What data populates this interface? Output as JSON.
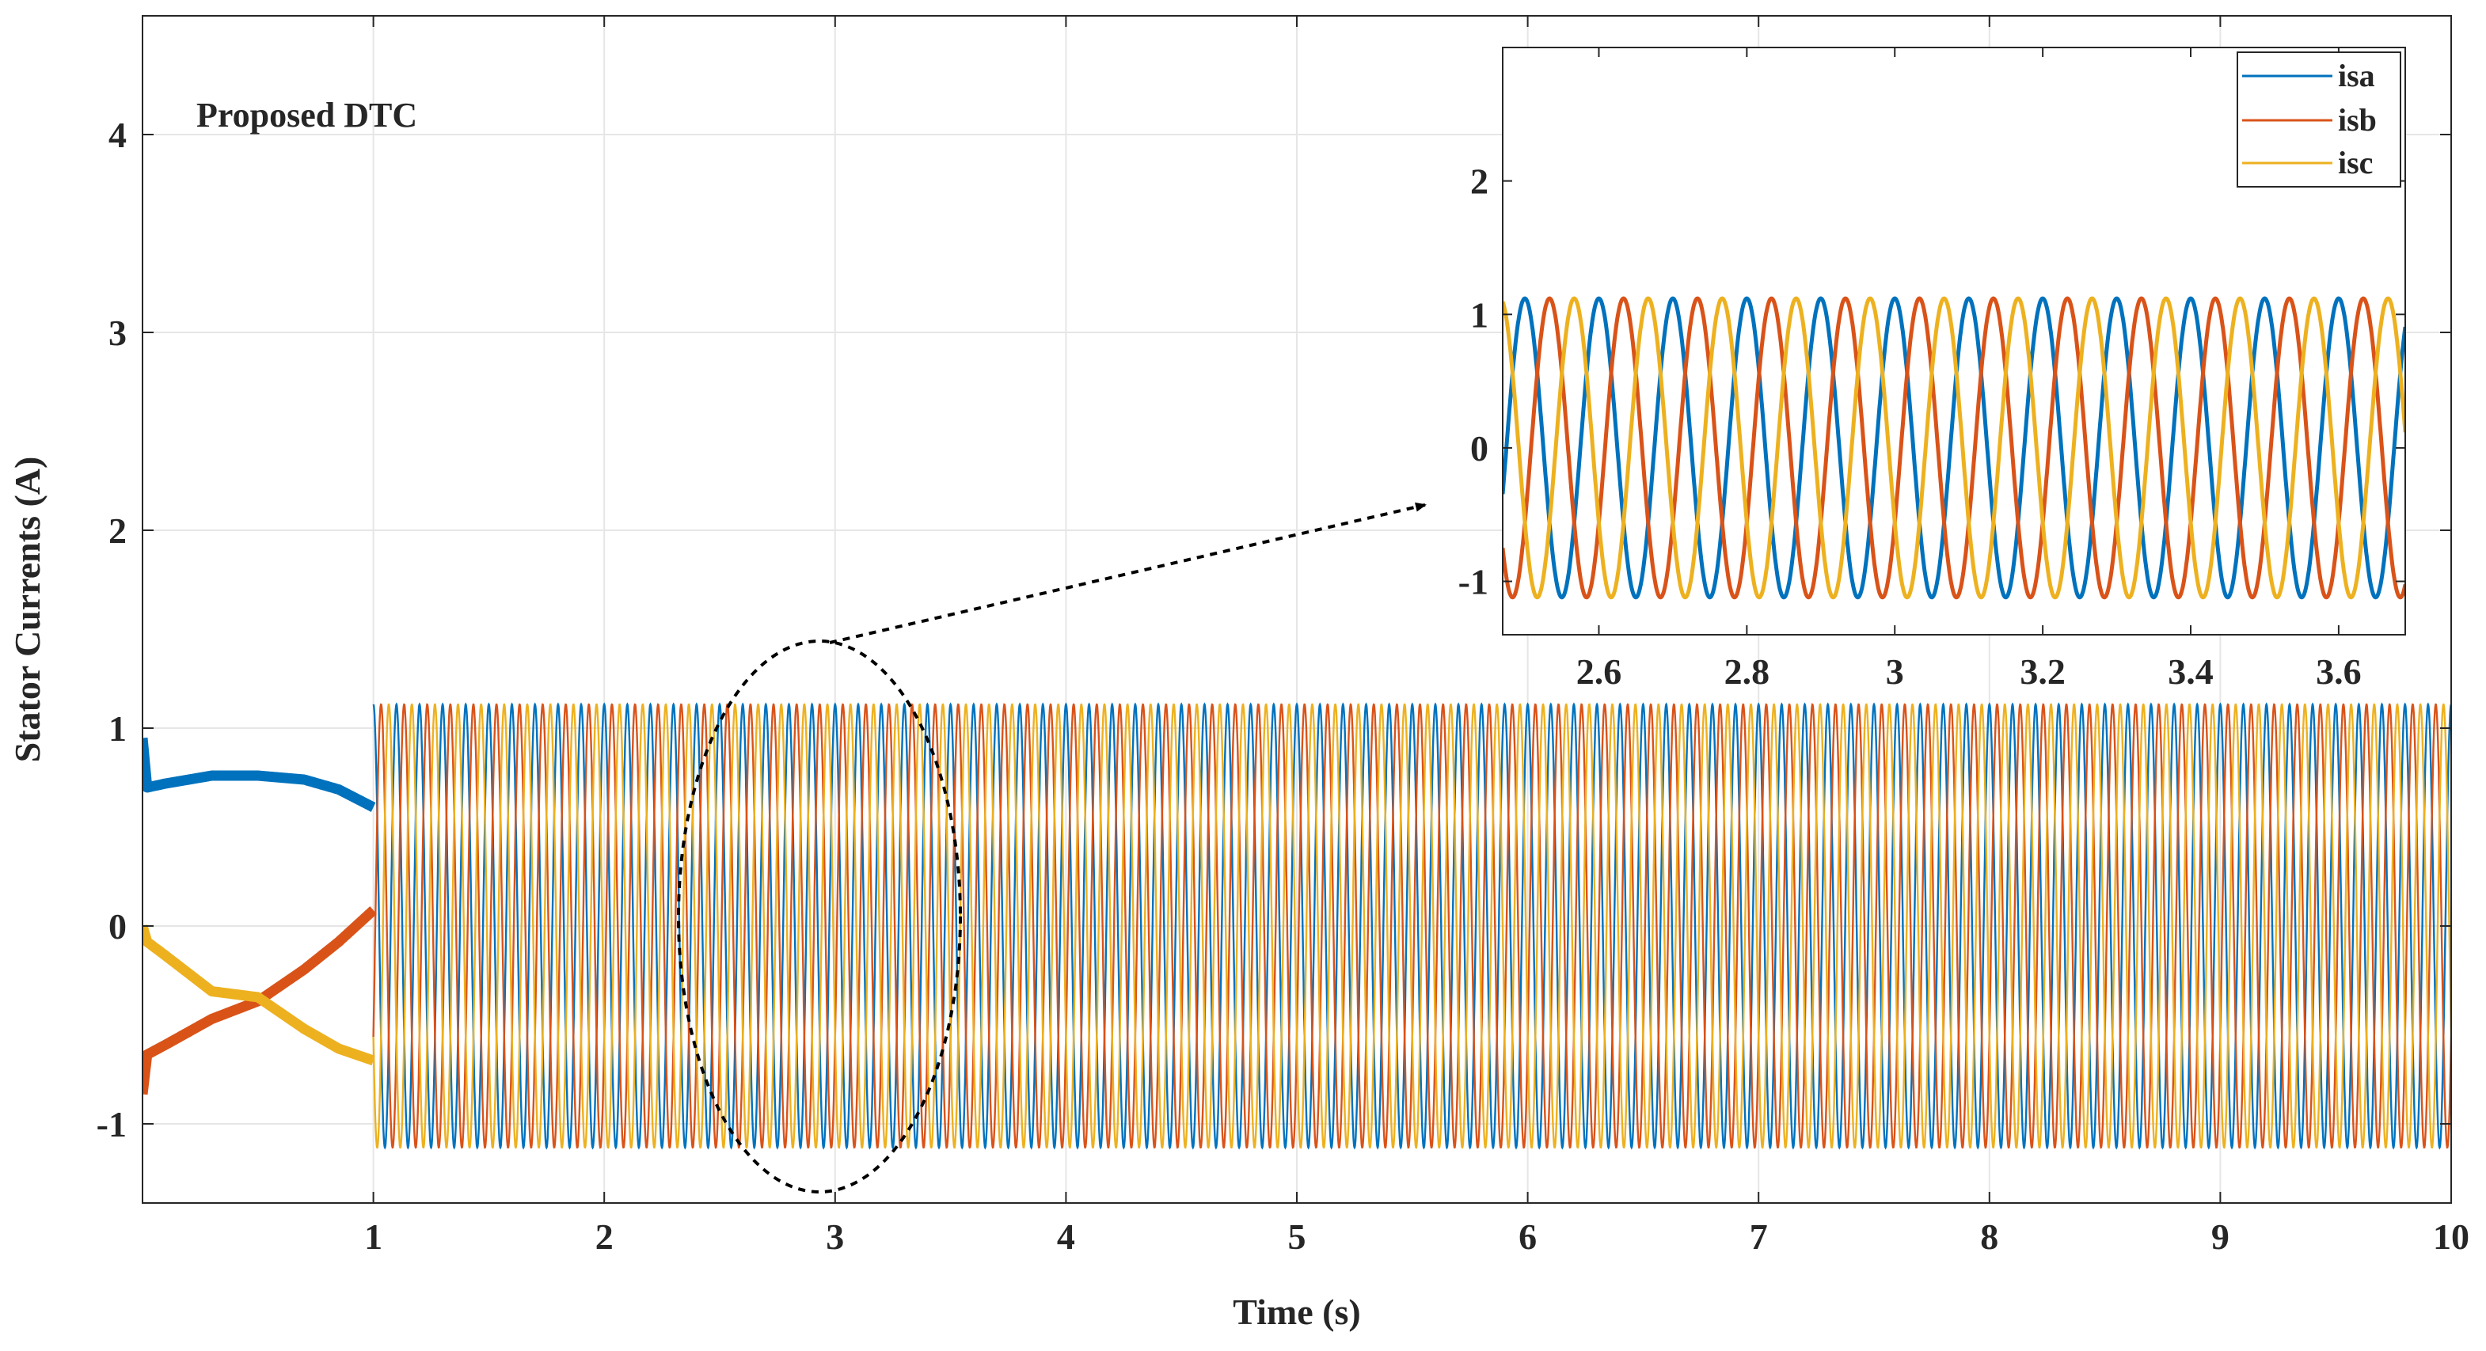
{
  "chart_data": [
    {
      "type": "line",
      "title": "",
      "annotation": "Proposed DTC",
      "xlabel": "Time (s)",
      "ylabel": "Stator Currents (A)",
      "xlim": [
        0,
        10
      ],
      "ylim": [
        -1.4,
        4.6
      ],
      "xticks": [
        1,
        2,
        3,
        4,
        5,
        6,
        7,
        8,
        9,
        10
      ],
      "yticks": [
        -1,
        0,
        1,
        2,
        3,
        4
      ],
      "xtick_labels": [
        "1",
        "2",
        "3",
        "4",
        "5",
        "6",
        "7",
        "8",
        "9",
        "10"
      ],
      "ytick_labels": [
        "-1",
        "0",
        "1",
        "2",
        "3",
        "4"
      ],
      "grid": true,
      "legend": false,
      "steady_state": {
        "start": 1.0,
        "amplitude": 1.12,
        "frequency_hz": 10,
        "cycles_shown": 90
      },
      "series": [
        {
          "name": "isa",
          "color": "#0072BD",
          "transient": {
            "x": [
              0,
              0.02,
              0.1,
              0.3,
              0.5,
              0.7,
              0.85,
              1.0
            ],
            "y": [
              0.95,
              0.7,
              0.72,
              0.76,
              0.76,
              0.74,
              0.69,
              0.6
            ]
          },
          "phase_deg": 0
        },
        {
          "name": "isb",
          "color": "#D95319",
          "transient": {
            "x": [
              0,
              0.02,
              0.1,
              0.3,
              0.5,
              0.7,
              0.85,
              1.0
            ],
            "y": [
              -0.85,
              -0.65,
              -0.6,
              -0.47,
              -0.38,
              -0.22,
              -0.08,
              0.08
            ]
          },
          "phase_deg": -120
        },
        {
          "name": "isc",
          "color": "#EDB120",
          "transient": {
            "x": [
              0,
              0.02,
              0.1,
              0.3,
              0.5,
              0.7,
              0.85,
              1.0
            ],
            "y": [
              0.0,
              -0.08,
              -0.15,
              -0.33,
              -0.36,
              -0.52,
              -0.62,
              -0.68
            ]
          },
          "phase_deg": 120
        }
      ]
    },
    {
      "type": "line",
      "title": "",
      "xlim": [
        2.47,
        3.69
      ],
      "ylim": [
        -1.4,
        3.0
      ],
      "xticks": [
        2.6,
        2.8,
        3,
        3.2,
        3.4,
        3.6
      ],
      "yticks": [
        -1,
        0,
        1,
        2
      ],
      "xtick_labels": [
        "2.6",
        "2.8",
        "3",
        "3.2",
        "3.4",
        "3.6"
      ],
      "ytick_labels": [
        "-1",
        "0",
        "1",
        "2"
      ],
      "grid": false,
      "legend": "top-right",
      "amplitude": 1.12,
      "frequency_hz": 10,
      "series": [
        {
          "name": "isa",
          "color": "#0072BD",
          "phase_deg": 0
        },
        {
          "name": "isb",
          "color": "#D95319",
          "phase_deg": -120
        },
        {
          "name": "isc",
          "color": "#EDB120",
          "phase_deg": 120
        }
      ]
    }
  ]
}
